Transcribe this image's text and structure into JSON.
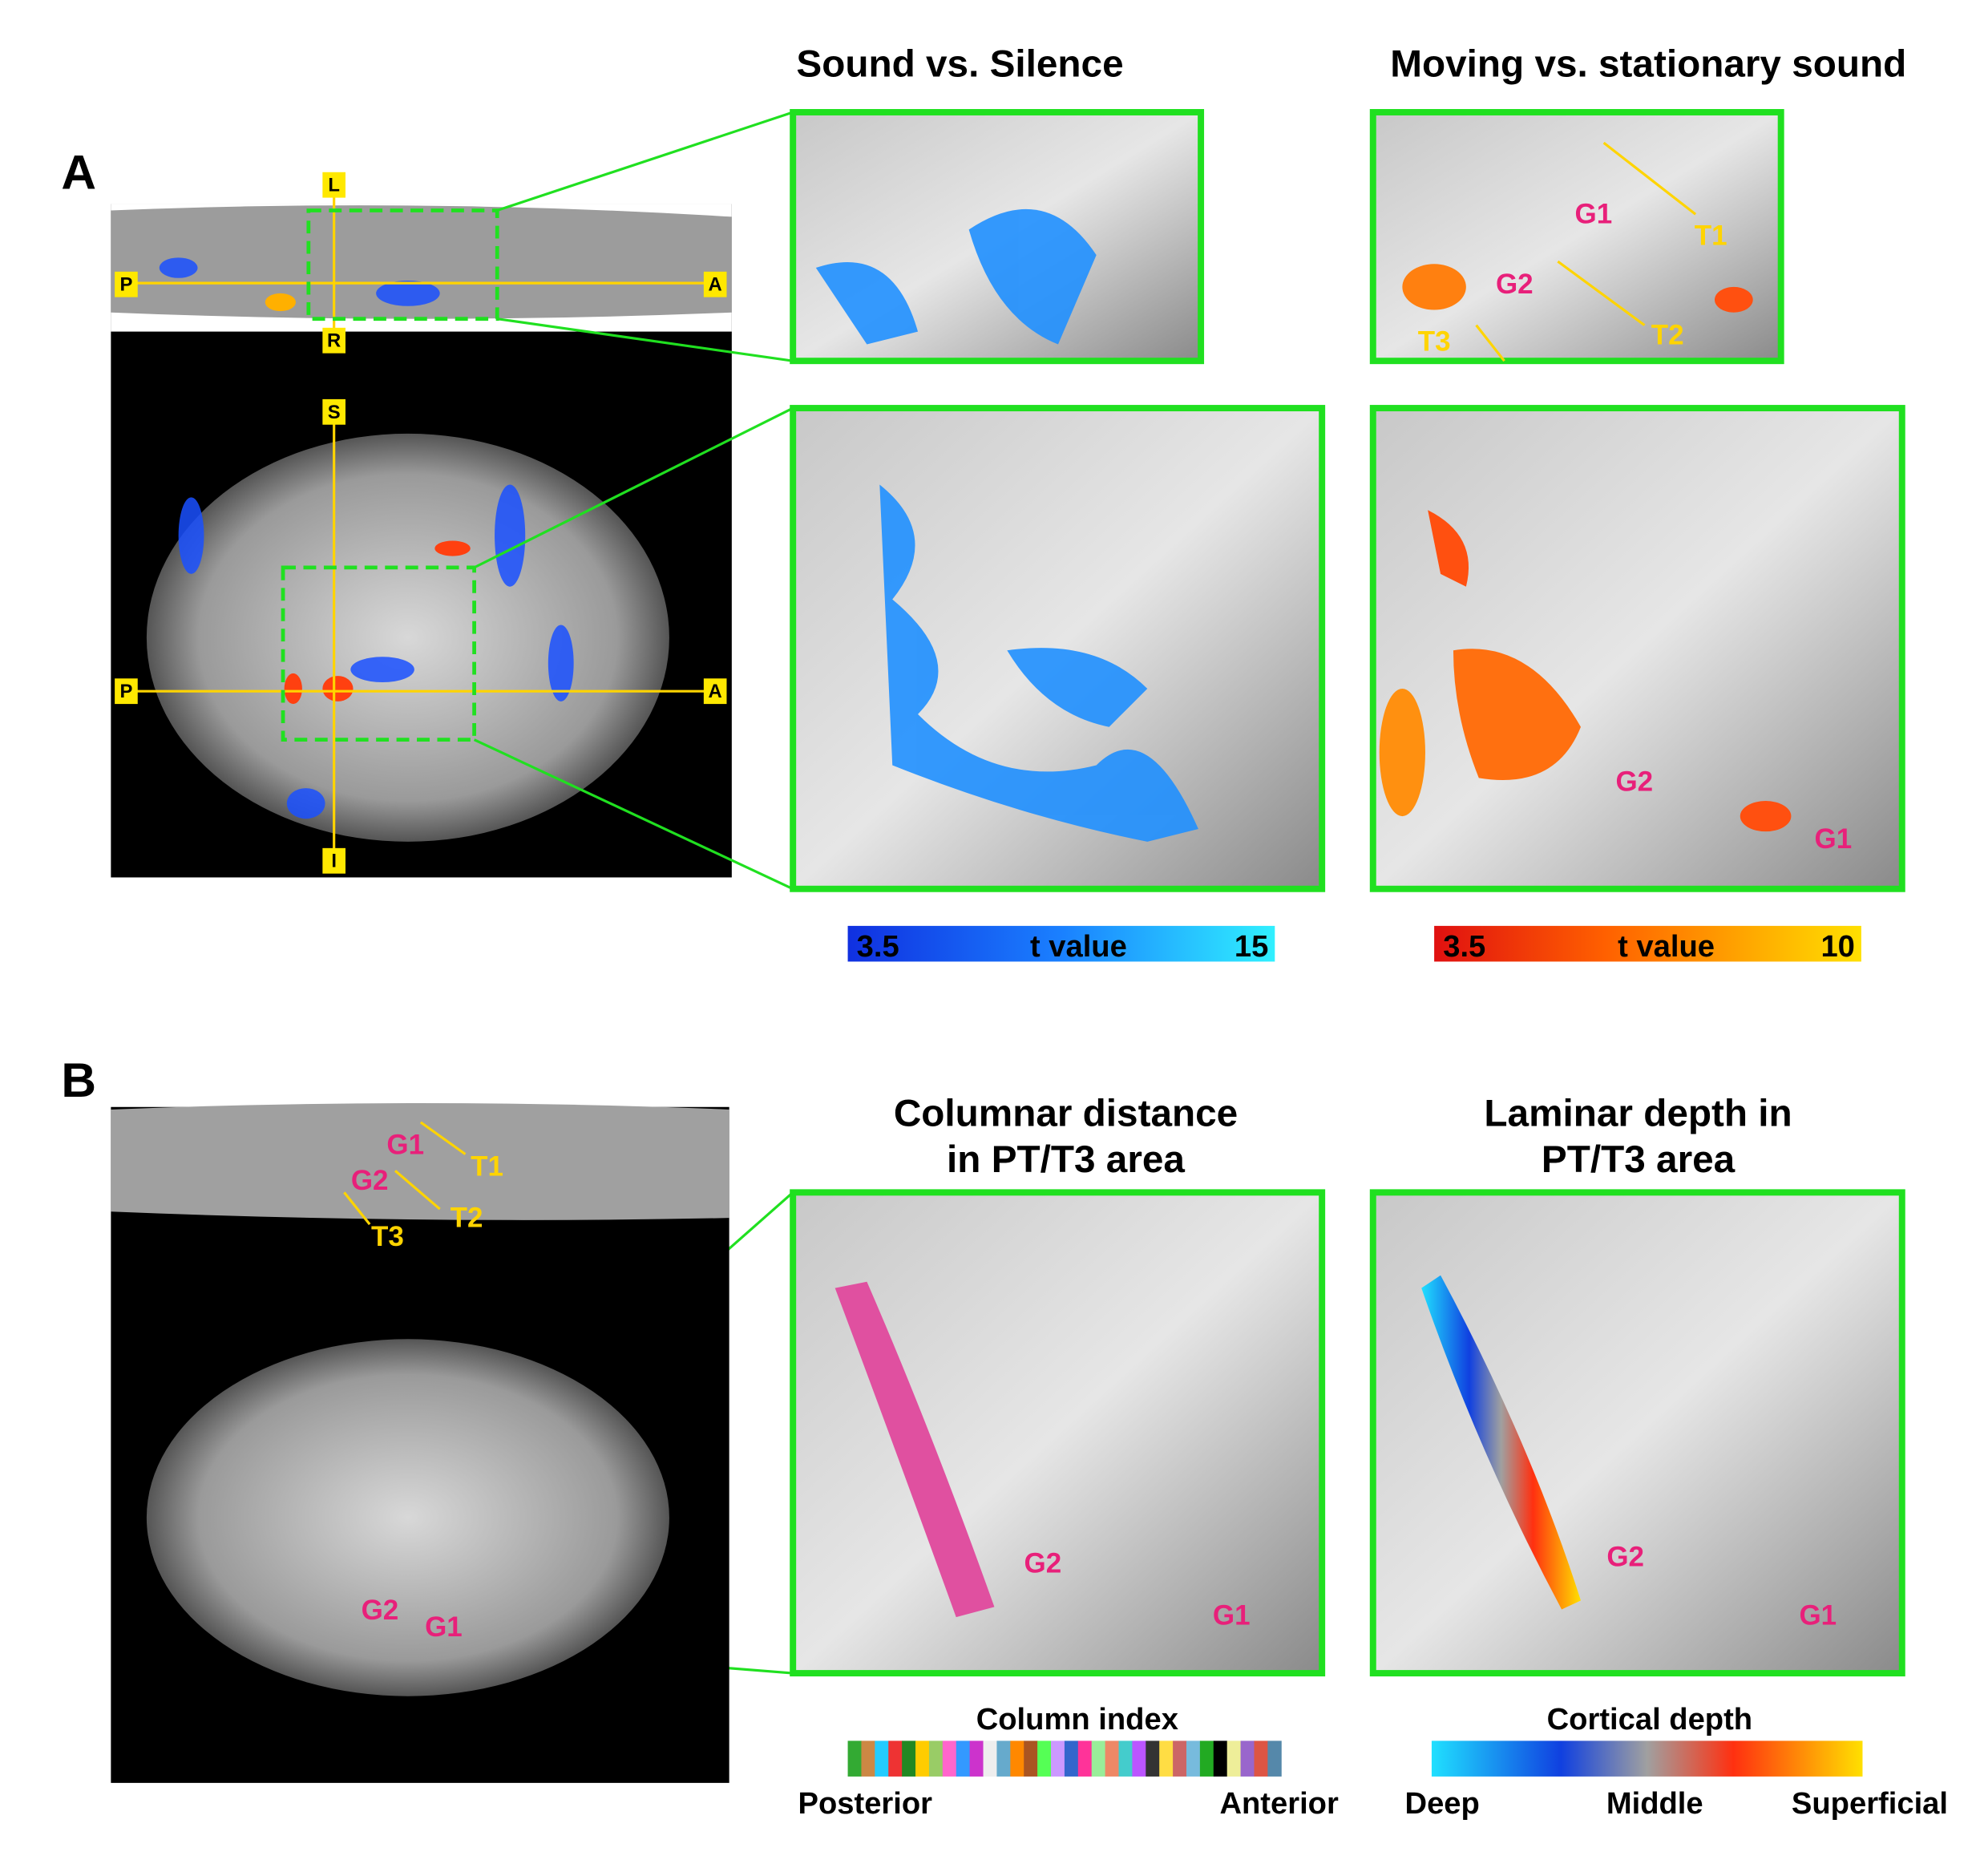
{
  "panel_a": {
    "label": "A",
    "title_left": "Sound vs. Silence",
    "title_right": "Moving vs. stationary sound",
    "axial_labels": [
      "L",
      "P",
      "A",
      "R"
    ],
    "sagittal_labels": [
      "S",
      "P",
      "A",
      "I"
    ],
    "zoom_top_right_labels": [
      "G1",
      "T1",
      "G2",
      "T2",
      "T3"
    ],
    "zoom_mid_right_labels": [
      "G2",
      "G1"
    ],
    "colorbar_left": {
      "min": 3.5,
      "label": "t value",
      "max": 15
    },
    "colorbar_right": {
      "min": 3.5,
      "label": "t value",
      "max": 10
    }
  },
  "panel_b": {
    "label": "B",
    "title_left": [
      "Columnar distance",
      "in PT/T3 area"
    ],
    "title_right": [
      "Laminar depth in",
      "PT/T3 area"
    ],
    "axial_labels": [
      "G1",
      "T1",
      "G2",
      "T2",
      "T3"
    ],
    "sagittal_labels": [
      "G2",
      "G1"
    ],
    "zoom_left_labels": [
      "G2",
      "G1"
    ],
    "zoom_right_labels": [
      "G2",
      "G1"
    ],
    "column_bar": {
      "title": "Column index",
      "left": "Posterior",
      "right": "Anterior"
    },
    "depth_bar": {
      "title": "Cortical depth",
      "left": "Deep",
      "middle": "Middle",
      "right": "Superficial"
    }
  }
}
